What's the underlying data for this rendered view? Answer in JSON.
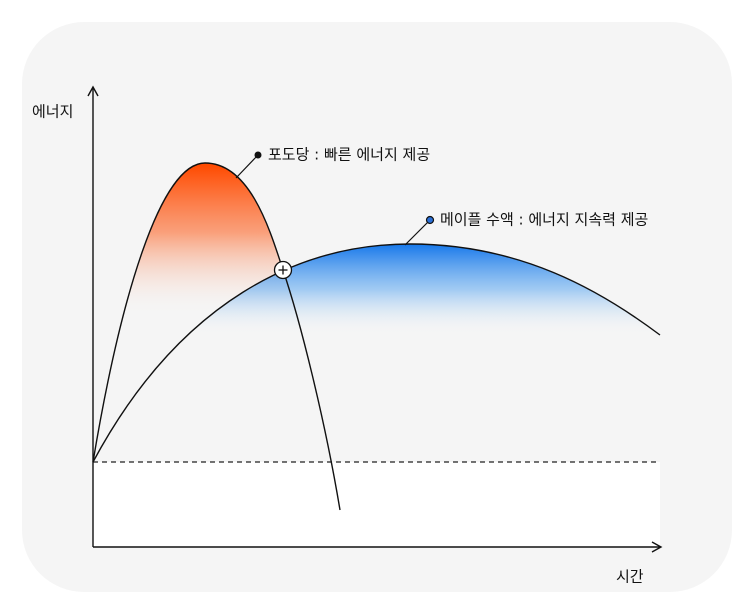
{
  "y_axis_label": "에너지",
  "x_axis_label": "시간",
  "annotations": [
    {
      "label": "포도당 : 빠른 에너지 제공"
    },
    {
      "label": "메이플 수액 : 에너지 지속력 제공"
    }
  ]
}
